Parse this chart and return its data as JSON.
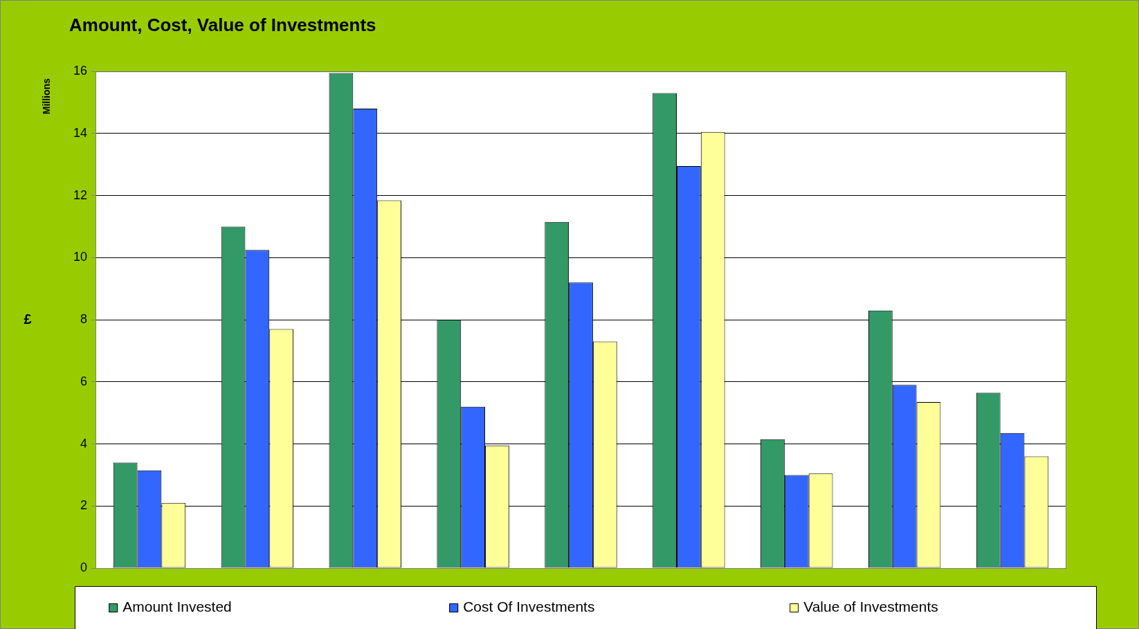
{
  "chart_data": {
    "type": "bar",
    "title": "Amount, Cost, Value of Investments",
    "ylabel": "£",
    "annotations": [
      "Millions"
    ],
    "categories": [
      null,
      null,
      null,
      null,
      null,
      null,
      null,
      null,
      null
    ],
    "series": [
      {
        "name": "Amount Invested",
        "color": "#339966",
        "values": [
          3.4,
          11.0,
          15.95,
          8.0,
          11.15,
          15.3,
          4.15,
          8.3,
          5.65
        ]
      },
      {
        "name": "Cost Of Investments",
        "color": "#3366ff",
        "values": [
          3.15,
          10.25,
          14.8,
          5.2,
          9.2,
          12.95,
          3.0,
          5.9,
          4.35
        ]
      },
      {
        "name": "Value of Investments",
        "color": "#ffff99",
        "values": [
          2.1,
          7.7,
          11.85,
          3.95,
          7.3,
          14.05,
          3.05,
          5.35,
          3.6
        ]
      }
    ],
    "ylim": [
      0,
      16
    ],
    "yticks": [
      0,
      2,
      4,
      6,
      8,
      10,
      12,
      14,
      16
    ],
    "grid": "y",
    "legend": "bottom"
  }
}
